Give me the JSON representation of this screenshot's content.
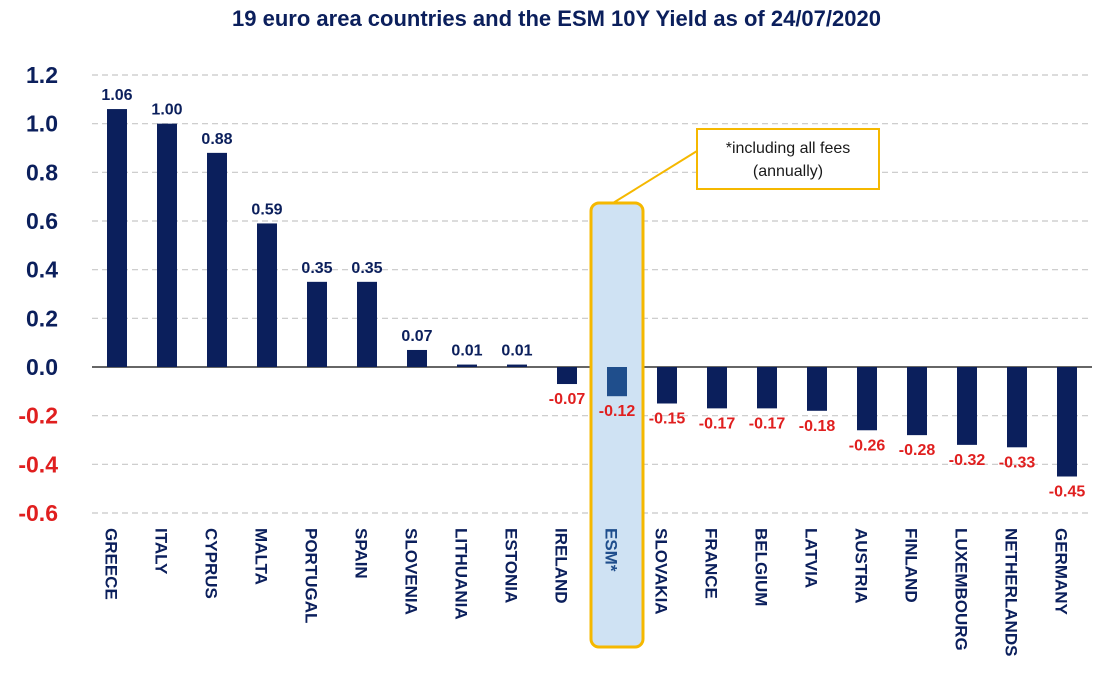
{
  "chart_data": {
    "type": "bar",
    "title": "19 euro area countries and the ESM 10Y Yield as of 24/07/2020",
    "categories": [
      "GREECE",
      "ITALY",
      "CYPRUS",
      "MALTA",
      "PORTUGAL",
      "SPAIN",
      "SLOVENIA",
      "LITHUANIA",
      "ESTONIA",
      "IRELAND",
      "ESM*",
      "SLOVAKIA",
      "FRANCE",
      "BELGIUM",
      "LATVIA",
      "AUSTRIA",
      "FINLAND",
      "LUXEMBOURG",
      "NETHERLANDS",
      "GERMANY"
    ],
    "values": [
      1.06,
      1.0,
      0.88,
      0.59,
      0.35,
      0.35,
      0.07,
      0.01,
      0.01,
      -0.07,
      -0.12,
      -0.15,
      -0.17,
      -0.17,
      -0.18,
      -0.26,
      -0.28,
      -0.32,
      -0.33,
      -0.45
    ],
    "value_labels": [
      "1.06",
      "1.00",
      "0.88",
      "0.59",
      "0.35",
      "0.35",
      "0.07",
      "0.01",
      "0.01",
      "-0.07",
      "-0.12",
      "-0.15",
      "-0.17",
      "-0.17",
      "-0.18",
      "-0.26",
      "-0.28",
      "-0.32",
      "-0.33",
      "-0.45"
    ],
    "yticks": [
      "1.2",
      "1.0",
      "0.8",
      "0.6",
      "0.4",
      "0.2",
      "0.0",
      "-0.2",
      "-0.4",
      "-0.6"
    ],
    "ytick_values": [
      1.2,
      1.0,
      0.8,
      0.6,
      0.4,
      0.2,
      0.0,
      -0.2,
      -0.4,
      -0.6
    ],
    "ylim": [
      -0.6,
      1.2
    ],
    "xlabel": "",
    "ylabel": "",
    "grid": "horizontal dashed",
    "legend": "none",
    "highlight_category": "ESM*",
    "annotation": {
      "lines": [
        "*including all fees",
        "(annually)"
      ]
    },
    "colors": {
      "bar": "#0b1f5c",
      "highlight_bar": "#1f4e8c",
      "highlight_fill": "#cfe2f3",
      "highlight_border": "#f5b800",
      "positive_label": "#0b1f5c",
      "negative_label": "#e01f1f",
      "highlight_tick": "#1f4e8c"
    }
  }
}
